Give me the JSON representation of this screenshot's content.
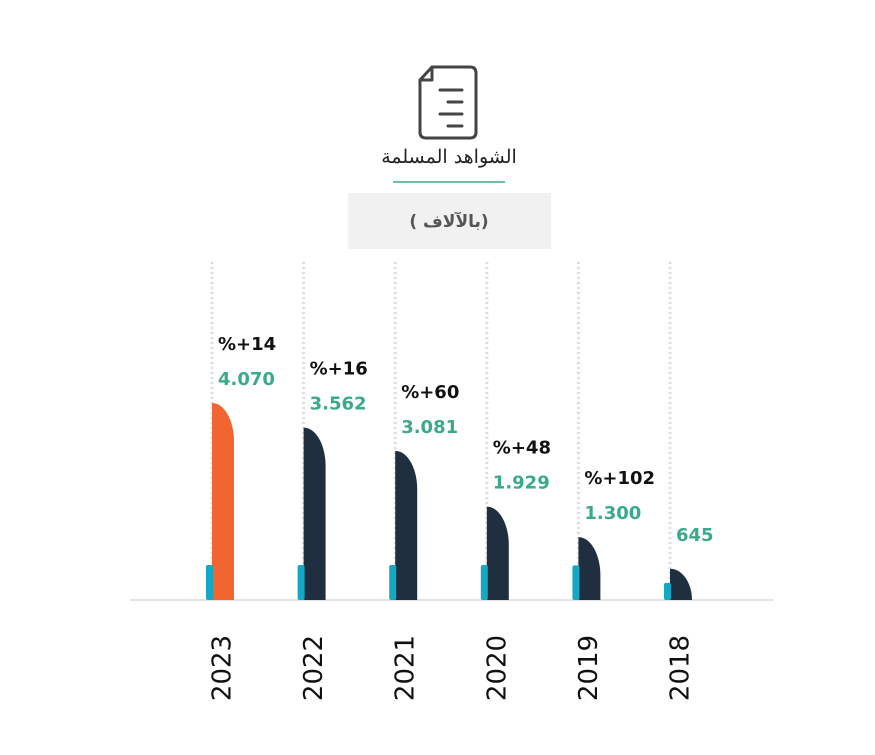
{
  "chart_data": {
    "type": "bar",
    "title": "الشواهد المسلمة",
    "subtitle": "( بالآلاف)",
    "categories": [
      "2023",
      "2022",
      "2021",
      "2020",
      "2019",
      "2018"
    ],
    "values": [
      4070,
      3562,
      3081,
      1929,
      1300,
      645
    ],
    "value_labels": [
      "4.070",
      "3.562",
      "3.081",
      "1.929",
      "1.300",
      "645"
    ],
    "colors": [
      "#f26430",
      "#1f2f40",
      "#1f2f40",
      "#1f2f40",
      "#1f2f40",
      "#1f2f40"
    ],
    "growth": {
      "values": [
        14,
        16,
        60,
        48,
        102,
        null
      ],
      "value_labels": [
        "%+14",
        "%+16",
        "%+60",
        "%+48",
        "%+102",
        null
      ]
    },
    "accent_color": "#13a9c4",
    "label_color": "#3aaa8a",
    "ylim": [
      0,
      4070
    ]
  }
}
